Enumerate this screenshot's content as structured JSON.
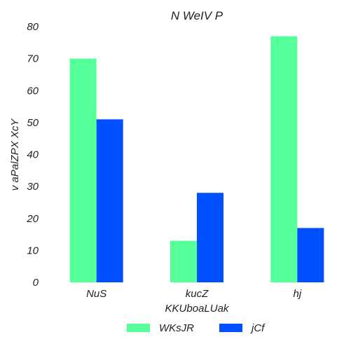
{
  "chart_data": {
    "type": "bar",
    "title": "N WeIV  P",
    "xlabel": "KKUboaLUak",
    "ylabel": "v aPalZPX XcY",
    "categories": [
      "NuS",
      "kucZ",
      "hj"
    ],
    "series": [
      {
        "name": "WKsJR",
        "color": "#55ff99",
        "values": [
          70,
          13,
          77
        ]
      },
      {
        "name": "jCf",
        "color": "#0050ff",
        "values": [
          51,
          28,
          17
        ]
      }
    ],
    "ylim": [
      0,
      80
    ],
    "yticks": [
      0,
      10,
      20,
      30,
      40,
      50,
      60,
      70,
      80
    ],
    "grid": false,
    "legend_position": "bottom-center"
  }
}
